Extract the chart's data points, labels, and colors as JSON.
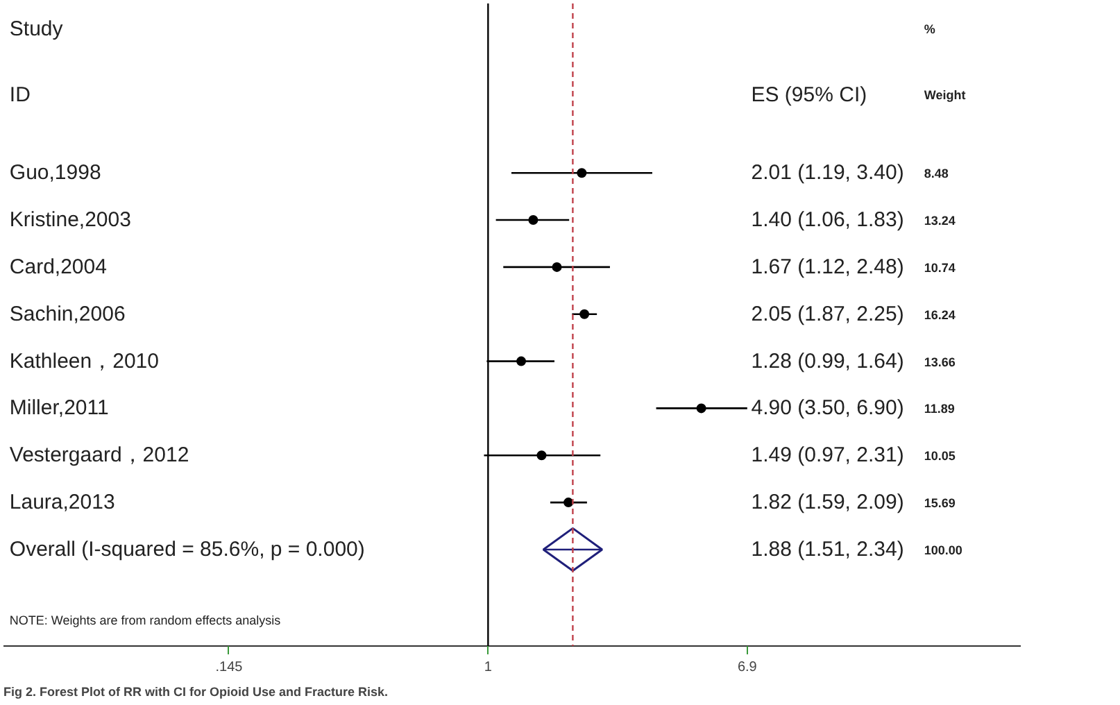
{
  "chart_data": {
    "type": "scatter",
    "orientation": "horizontal",
    "log": "x",
    "categories": [
      "Guo,1998",
      "Kristine,2003",
      "Card,2004",
      "Sachin,2006",
      "Kathleen，2010",
      "Miller,2011",
      "Vestergaard，2012",
      "Laura,2013",
      "Overall  (I-squared = 85.6%, p = 0.000)"
    ],
    "series": [
      {
        "color": "#000000",
        "marker": "circle",
        "values": [
          2.01,
          1.4,
          1.67,
          2.05,
          1.28,
          4.9,
          1.49,
          1.82,
          null
        ],
        "errors": [
          [
            1.19,
            3.4
          ],
          [
            1.06,
            1.83
          ],
          [
            1.12,
            2.48
          ],
          [
            1.87,
            2.25
          ],
          [
            0.99,
            1.64
          ],
          [
            3.5,
            6.9
          ],
          [
            0.97,
            2.31
          ],
          [
            1.59,
            2.09
          ],
          null
        ]
      },
      {
        "color": "#1f1f7a",
        "marker": "diamond",
        "values": [
          null,
          null,
          null,
          null,
          null,
          null,
          null,
          null,
          1.88
        ],
        "errors": [
          null,
          null,
          null,
          null,
          null,
          null,
          null,
          null,
          [
            1.51,
            2.34
          ]
        ]
      }
    ],
    "xlim": [
      0.027,
      53
    ],
    "xticks": [
      {
        "value": 0.145,
        "label": ".145"
      },
      1,
      6.9
    ],
    "ref_lines": [
      {
        "axis": "x",
        "value": 1,
        "color": "#000000",
        "line_style": "solid"
      },
      {
        "axis": "x",
        "value": 1.88,
        "color": "#c0404a",
        "line_style": "dashed"
      }
    ],
    "grid": false,
    "annotations": [
      "Study",
      "ID",
      "ES (95% CI)",
      "%",
      "Weight",
      "NOTE: Weights are from random effects analysis",
      "Fig 2. Forest Plot of RR with CI for Opioid Use and Fracture Risk.",
      "2.01 (1.19, 3.40)",
      "1.40 (1.06, 1.83)",
      "1.67 (1.12, 2.48)",
      "2.05 (1.87, 2.25)",
      "1.28 (0.99, 1.64)",
      "4.90 (3.50, 6.90)",
      "1.49 (0.97, 2.31)",
      "1.82 (1.59, 2.09)",
      "1.88 (1.51, 2.34)",
      "8.48",
      "13.24",
      "10.74",
      "16.24",
      "13.66",
      "11.89",
      "10.05",
      "15.69",
      "100.00"
    ]
  }
}
